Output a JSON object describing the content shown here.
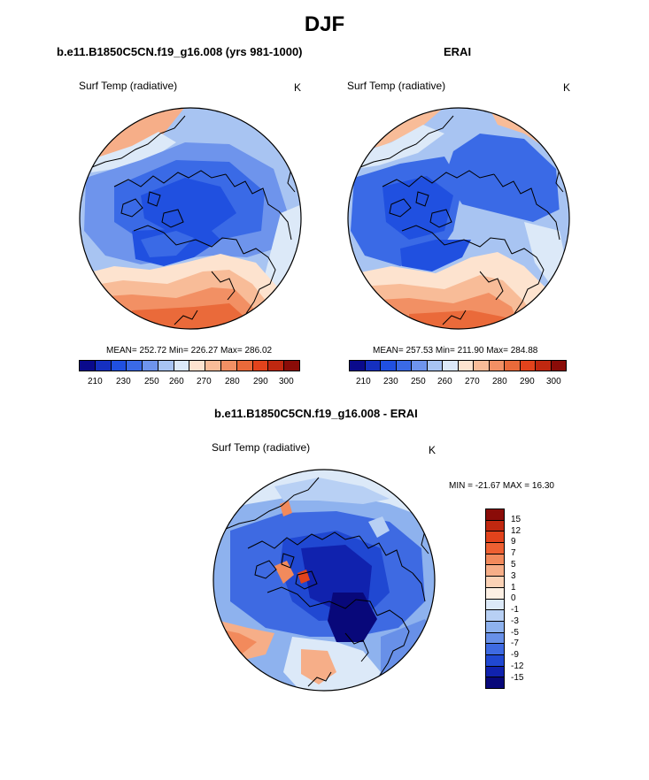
{
  "figure": {
    "title": "DJF",
    "panels": [
      {
        "title": "b.e11.B1850C5CN.f19_g16.008 (yrs 981-1000)",
        "variable": "Surf Temp (radiative)",
        "units": "K",
        "stats": "MEAN= 252.72  Min= 226.27  Max= 286.02"
      },
      {
        "title": "ERAI",
        "variable": "Surf Temp (radiative)",
        "units": "K",
        "stats": "MEAN= 257.53  Min= 211.90  Max= 284.88"
      },
      {
        "title": "b.e11.B1850C5CN.f19_g16.008 - ERAI",
        "variable": "Surf Temp (radiative)",
        "units": "K",
        "stats": "MIN = -21.67 MAX =  16.30"
      }
    ]
  },
  "colorbar_abs": {
    "tick_labels": [
      "210",
      "230",
      "250",
      "260",
      "270",
      "280",
      "290",
      "300"
    ],
    "colors": [
      "#0a0a8c",
      "#1530c0",
      "#2050e0",
      "#3a6ae6",
      "#6e94ec",
      "#a8c4f2",
      "#dce9f8",
      "#fde3cf",
      "#f8bc98",
      "#f29064",
      "#ea6a3a",
      "#e2431c",
      "#c02810",
      "#8a0c08"
    ]
  },
  "colorbar_diff": {
    "tick_labels": [
      "15",
      "12",
      "9",
      "7",
      "5",
      "3",
      "1",
      "0",
      "-1",
      "-3",
      "-5",
      "-7",
      "-9",
      "-12",
      "-15"
    ],
    "colors": [
      "#8a0c08",
      "#c02810",
      "#e2431c",
      "#ee6032",
      "#f28a5c",
      "#f6ae88",
      "#fbd2b6",
      "#fdf0e4",
      "#dce9f8",
      "#b8d0f4",
      "#8eb2ee",
      "#6890e8",
      "#3e6ae2",
      "#2048d2",
      "#1022ae",
      "#08087a"
    ]
  }
}
